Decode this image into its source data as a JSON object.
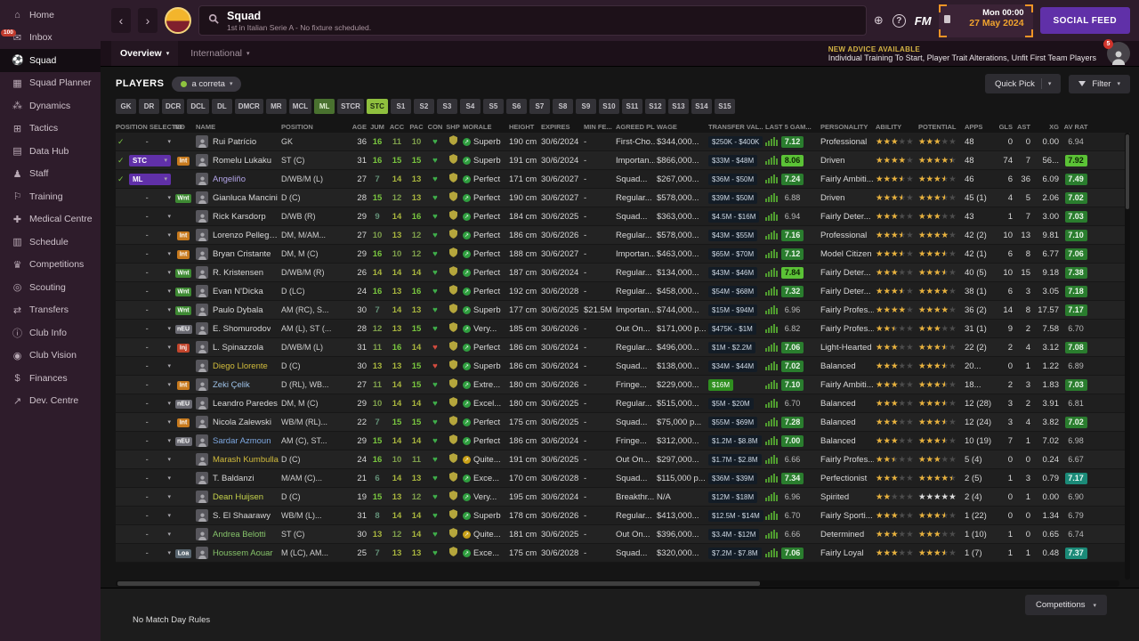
{
  "sidebar": {
    "items": [
      {
        "label": "Home",
        "icon": "⌂",
        "name": "home"
      },
      {
        "label": "Inbox",
        "icon": "✉",
        "name": "inbox",
        "badge": "100"
      },
      {
        "label": "Squad",
        "icon": "⚽",
        "name": "squad",
        "active": true
      },
      {
        "label": "Squad Planner",
        "icon": "▦",
        "name": "squad-planner"
      },
      {
        "label": "Dynamics",
        "icon": "⁂",
        "name": "dynamics"
      },
      {
        "label": "Tactics",
        "icon": "⊞",
        "name": "tactics"
      },
      {
        "label": "Data Hub",
        "icon": "▤",
        "name": "data-hub"
      },
      {
        "label": "Staff",
        "icon": "♟",
        "name": "staff"
      },
      {
        "label": "Training",
        "icon": "⚐",
        "name": "training"
      },
      {
        "label": "Medical Centre",
        "icon": "✚",
        "name": "medical-centre"
      },
      {
        "label": "Schedule",
        "icon": "▥",
        "name": "schedule"
      },
      {
        "label": "Competitions",
        "icon": "♛",
        "name": "competitions"
      },
      {
        "label": "Scouting",
        "icon": "◎",
        "name": "scouting"
      },
      {
        "label": "Transfers",
        "icon": "⇄",
        "name": "transfers"
      },
      {
        "label": "Club Info",
        "icon": "ⓘ",
        "name": "club-info"
      },
      {
        "label": "Club Vision",
        "icon": "◉",
        "name": "club-vision"
      },
      {
        "label": "Finances",
        "icon": "$",
        "name": "finances"
      },
      {
        "label": "Dev. Centre",
        "icon": "↗",
        "name": "dev-centre"
      }
    ]
  },
  "topbar": {
    "title": "Squad",
    "subtitle": "1st in Italian Serie A - No fixture scheduled.",
    "fm_logo": "FM",
    "date_line1": "Mon 00:00",
    "date_line2": "27 May 2024",
    "social_feed_label": "SOCIAL FEED"
  },
  "tabs": [
    {
      "label": "Overview"
    },
    {
      "label": "International"
    }
  ],
  "advice": {
    "heading": "NEW ADVICE AVAILABLE",
    "text": "Individual Training To Start, Player Trait Alterations, Unfit First Team Players",
    "badge": "5"
  },
  "players_bar": {
    "label": "PLAYERS",
    "view_selector": "a correta",
    "quick_pick": "Quick Pick",
    "filter": "Filter"
  },
  "position_filters": [
    {
      "label": "GK"
    },
    {
      "label": "DR"
    },
    {
      "label": "DCR"
    },
    {
      "label": "DCL"
    },
    {
      "label": "DL"
    },
    {
      "label": "DMCR"
    },
    {
      "label": "MR"
    },
    {
      "label": "MCL"
    },
    {
      "label": "ML",
      "state": "sel-mid"
    },
    {
      "label": "STCR"
    },
    {
      "label": "STC",
      "state": "sel"
    },
    {
      "label": "S1"
    },
    {
      "label": "S2"
    },
    {
      "label": "S3"
    },
    {
      "label": "S4"
    },
    {
      "label": "S5"
    },
    {
      "label": "S6"
    },
    {
      "label": "S7"
    },
    {
      "label": "S8"
    },
    {
      "label": "S9"
    },
    {
      "label": "S10"
    },
    {
      "label": "S11"
    },
    {
      "label": "S12"
    },
    {
      "label": "S13"
    },
    {
      "label": "S14"
    },
    {
      "label": "S15"
    }
  ],
  "table": {
    "columns": [
      "POSITION SELECTED",
      "INF",
      "NAME",
      "POSITION",
      "AGE",
      "JUM",
      "ACC",
      "PAC",
      "CON",
      "SHP",
      "MORALE",
      "HEIGHT",
      "EXPIRES",
      "MIN FE...",
      "AGREED PL...",
      "WAGE",
      "TRANSFER VAL...",
      "LAST 5 GAM...",
      "PERSONALITY",
      "ABILITY",
      "POTENTIAL",
      "APPS",
      "GLS",
      "AST",
      "XG",
      "AV RAT"
    ],
    "rows": [
      {
        "check": true,
        "sel": "-",
        "inf": "",
        "name": "Rui Patrício",
        "pos": "GK",
        "age": 36,
        "jum": 16,
        "acc": 11,
        "pac": 10,
        "con": "g",
        "morale": "Superb",
        "mlvl": "g",
        "height": "190 cm",
        "expires": "30/6/2024",
        "fee": "-",
        "agreed": "First-Cho...",
        "wage": "$344,000...",
        "value": "$250K - $400K",
        "last5": "7.12",
        "personality": "Professional",
        "ab": 3,
        "po": 3,
        "apps": "48",
        "gls": "0",
        "ast": "0",
        "xg": "0.00",
        "avr": "6.94"
      },
      {
        "check": true,
        "sel": "STC",
        "sel_pill": true,
        "inf": "Int",
        "name": "Romelu Lukaku",
        "pos": "ST (C)",
        "age": 31,
        "jum": 16,
        "acc": 15,
        "pac": 15,
        "con": "g",
        "morale": "Superb",
        "mlvl": "g",
        "height": "191 cm",
        "expires": "30/6/2024",
        "fee": "-",
        "agreed": "Importan...",
        "wage": "$866,000...",
        "value": "$33M - $48M",
        "last5": "8.06",
        "personality": "Driven",
        "ab": 4,
        "po": 4.5,
        "apps": "48",
        "gls": "74",
        "ast": "7",
        "xg": "56...",
        "avr": "7.92"
      },
      {
        "check": true,
        "sel": "ML",
        "sel_pill": true,
        "inf": "",
        "name": "Angeliño",
        "name_color": "#b3a5e8",
        "pos": "D/WB/M (L)",
        "age": 27,
        "jum": 7,
        "acc": 14,
        "pac": 13,
        "con": "g",
        "morale": "Perfect",
        "mlvl": "g",
        "height": "171 cm",
        "expires": "30/6/2027",
        "fee": "-",
        "agreed": "Squad...",
        "wage": "$267,000...",
        "value": "$36M - $50M",
        "last5": "7.24",
        "personality": "Fairly Ambiti...",
        "ab": 3.5,
        "po": 3.5,
        "apps": "46",
        "gls": "6",
        "ast": "36",
        "xg": "6.09",
        "avr": "7.49"
      },
      {
        "sel": "-",
        "inf": "Wnt",
        "name": "Gianluca Mancini",
        "pos": "D (C)",
        "age": 28,
        "jum": 15,
        "acc": 12,
        "pac": 13,
        "con": "g",
        "morale": "Perfect",
        "mlvl": "g",
        "height": "190 cm",
        "expires": "30/6/2027",
        "fee": "-",
        "agreed": "Regular...",
        "wage": "$578,000...",
        "value": "$39M - $50M",
        "last5": "6.88",
        "personality": "Driven",
        "ab": 3.5,
        "po": 3.5,
        "apps": "45 (1)",
        "gls": "4",
        "ast": "5",
        "xg": "2.06",
        "avr": "7.02"
      },
      {
        "sel": "-",
        "inf": "",
        "name": "Rick Karsdorp",
        "pos": "D/WB (R)",
        "age": 29,
        "jum": 9,
        "acc": 14,
        "pac": 16,
        "con": "g",
        "morale": "Perfect",
        "mlvl": "g",
        "height": "184 cm",
        "expires": "30/6/2025",
        "fee": "-",
        "agreed": "Squad...",
        "wage": "$363,000...",
        "value": "$4.5M - $16M",
        "last5": "6.94",
        "personality": "Fairly Deter...",
        "ab": 3,
        "po": 3,
        "apps": "43",
        "gls": "1",
        "ast": "7",
        "xg": "3.00",
        "avr": "7.03"
      },
      {
        "sel": "-",
        "inf": "Int",
        "name": "Lorenzo Pellegrini",
        "pos": "DM, M/AM...",
        "age": 27,
        "jum": 10,
        "acc": 13,
        "pac": 12,
        "con": "g",
        "morale": "Perfect",
        "mlvl": "g",
        "height": "186 cm",
        "expires": "30/6/2026",
        "fee": "-",
        "agreed": "Regular...",
        "wage": "$578,000...",
        "value": "$43M - $55M",
        "last5": "7.16",
        "personality": "Professional",
        "ab": 3.5,
        "po": 4,
        "apps": "42 (2)",
        "gls": "10",
        "ast": "13",
        "xg": "9.81",
        "avr": "7.10"
      },
      {
        "sel": "-",
        "inf": "Int",
        "name": "Bryan Cristante",
        "pos": "DM, M (C)",
        "age": 29,
        "jum": 16,
        "acc": 10,
        "pac": 12,
        "con": "g",
        "morale": "Perfect",
        "mlvl": "g",
        "height": "188 cm",
        "expires": "30/6/2027",
        "fee": "-",
        "agreed": "Importan...",
        "wage": "$463,000...",
        "value": "$65M - $70M",
        "last5": "7.12",
        "personality": "Model Citizen",
        "ab": 3.5,
        "po": 3.5,
        "apps": "42 (1)",
        "gls": "6",
        "ast": "8",
        "xg": "6.77",
        "avr": "7.06"
      },
      {
        "sel": "-",
        "inf": "Wnt",
        "name": "R. Kristensen",
        "pos": "D/WB/M (R)",
        "age": 26,
        "jum": 14,
        "acc": 14,
        "pac": 14,
        "con": "g",
        "morale": "Perfect",
        "mlvl": "g",
        "height": "187 cm",
        "expires": "30/6/2024",
        "fee": "-",
        "agreed": "Regular...",
        "wage": "$134,000...",
        "value": "$43M - $46M",
        "last5": "7.84",
        "personality": "Fairly Deter...",
        "ab": 3,
        "po": 3.5,
        "apps": "40 (5)",
        "gls": "10",
        "ast": "15",
        "xg": "9.18",
        "avr": "7.38"
      },
      {
        "sel": "-",
        "inf": "Wnt",
        "name": "Evan N'Dicka",
        "pos": "D (LC)",
        "age": 24,
        "jum": 16,
        "acc": 13,
        "pac": 16,
        "con": "g",
        "morale": "Perfect",
        "mlvl": "g",
        "height": "192 cm",
        "expires": "30/6/2028",
        "fee": "-",
        "agreed": "Regular...",
        "wage": "$458,000...",
        "value": "$54M - $68M",
        "last5": "7.32",
        "personality": "Fairly Deter...",
        "ab": 3.5,
        "po": 4,
        "apps": "38 (1)",
        "gls": "6",
        "ast": "3",
        "xg": "3.05",
        "avr": "7.18"
      },
      {
        "sel": "-",
        "inf": "Wnt",
        "name": "Paulo Dybala",
        "pos": "AM (RC), S...",
        "age": 30,
        "jum": 7,
        "acc": 14,
        "pac": 13,
        "con": "g",
        "morale": "Superb",
        "mlvl": "g",
        "height": "177 cm",
        "expires": "30/6/2025",
        "fee": "$21.5M",
        "agreed": "Importan...",
        "wage": "$744,000...",
        "value": "$15M - $94M",
        "last5": "6.96",
        "personality": "Fairly Profes...",
        "ab": 4,
        "po": 4,
        "apps": "36 (2)",
        "gls": "14",
        "ast": "8",
        "xg": "17.57",
        "avr": "7.17"
      },
      {
        "sel": "-",
        "inf": "nEU",
        "name": "E. Shomurodov",
        "pos": "AM (L), ST (...",
        "age": 28,
        "jum": 12,
        "acc": 13,
        "pac": 15,
        "con": "g",
        "morale": "Very...",
        "mlvl": "g",
        "height": "185 cm",
        "expires": "30/6/2026",
        "fee": "-",
        "agreed": "Out On...",
        "wage": "$171,000 p...",
        "value": "$475K - $1M",
        "last5": "6.82",
        "personality": "Fairly Profes...",
        "ab": 2.5,
        "po": 3,
        "apps": "31 (1)",
        "gls": "9",
        "ast": "2",
        "xg": "7.58",
        "avr": "6.70"
      },
      {
        "sel": "-",
        "inf": "Inj",
        "name": "L. Spinazzola",
        "pos": "D/WB/M (L)",
        "age": 31,
        "jum": 11,
        "acc": 16,
        "pac": 14,
        "con": "r",
        "morale": "Perfect",
        "mlvl": "g",
        "height": "186 cm",
        "expires": "30/6/2024",
        "fee": "-",
        "agreed": "Regular...",
        "wage": "$496,000...",
        "value": "$1M - $2.2M",
        "last5": "7.06",
        "personality": "Light-Hearted",
        "ab": 3,
        "po": 3.5,
        "apps": "22 (2)",
        "gls": "2",
        "ast": "4",
        "xg": "3.12",
        "avr": "7.08"
      },
      {
        "sel": "-",
        "inf": "",
        "name": "Diego Llorente",
        "name_color": "#d2bc3c",
        "pos": "D (C)",
        "age": 30,
        "jum": 13,
        "acc": 13,
        "pac": 15,
        "con": "r",
        "morale": "Superb",
        "mlvl": "g",
        "height": "186 cm",
        "expires": "30/6/2024",
        "fee": "-",
        "agreed": "Squad...",
        "wage": "$138,000...",
        "value": "$34M - $44M",
        "last5": "7.02",
        "personality": "Balanced",
        "ab": 3,
        "po": 3.5,
        "apps": "20...",
        "gls": "0",
        "ast": "1",
        "xg": "1.22",
        "avr": "6.89"
      },
      {
        "sel": "-",
        "inf": "Int",
        "name": "Zeki Çelik",
        "name_color": "#9ec2e8",
        "pos": "D (RL), WB...",
        "age": 27,
        "jum": 11,
        "acc": 14,
        "pac": 15,
        "con": "g",
        "morale": "Extre...",
        "mlvl": "g",
        "height": "180 cm",
        "expires": "30/6/2026",
        "fee": "-",
        "agreed": "Fringe...",
        "wage": "$229,000...",
        "value": "$16M",
        "value_green": true,
        "last5": "7.10",
        "personality": "Fairly Ambiti...",
        "ab": 3,
        "po": 3.5,
        "apps": "18...",
        "gls": "2",
        "ast": "3",
        "xg": "1.83",
        "avr": "7.03"
      },
      {
        "sel": "-",
        "inf": "nEU",
        "name": "Leandro Paredes",
        "pos": "DM, M (C)",
        "age": 29,
        "jum": 10,
        "acc": 14,
        "pac": 14,
        "con": "g",
        "morale": "Excel...",
        "mlvl": "g",
        "height": "180 cm",
        "expires": "30/6/2025",
        "fee": "-",
        "agreed": "Regular...",
        "wage": "$515,000...",
        "value": "$5M - $20M",
        "last5": "6.70",
        "personality": "Balanced",
        "ab": 3,
        "po": 3.5,
        "apps": "12 (28)",
        "gls": "3",
        "ast": "2",
        "xg": "3.91",
        "avr": "6.81"
      },
      {
        "sel": "-",
        "inf": "Int",
        "name": "Nicola Zalewski",
        "pos": "WB/M (RL)...",
        "age": 22,
        "jum": 7,
        "acc": 15,
        "pac": 15,
        "con": "g",
        "morale": "Perfect",
        "mlvl": "g",
        "height": "175 cm",
        "expires": "30/6/2025",
        "fee": "-",
        "agreed": "Squad...",
        "wage": "$75,000 p...",
        "value": "$55M - $69M",
        "last5": "7.28",
        "personality": "Balanced",
        "ab": 3,
        "po": 3.5,
        "apps": "12 (24)",
        "gls": "3",
        "ast": "4",
        "xg": "3.82",
        "avr": "7.02"
      },
      {
        "sel": "-",
        "inf": "nEU",
        "name": "Sardar Azmoun",
        "name_color": "#7da7e0",
        "pos": "AM (C), ST...",
        "age": 29,
        "jum": 15,
        "acc": 14,
        "pac": 14,
        "con": "g",
        "morale": "Perfect",
        "mlvl": "g",
        "height": "186 cm",
        "expires": "30/6/2024",
        "fee": "-",
        "agreed": "Fringe...",
        "wage": "$312,000...",
        "value": "$1.2M - $8.8M",
        "last5": "7.00",
        "personality": "Balanced",
        "ab": 3,
        "po": 3.5,
        "apps": "10 (19)",
        "gls": "7",
        "ast": "1",
        "xg": "7.02",
        "avr": "6.98"
      },
      {
        "sel": "-",
        "inf": "",
        "name": "Marash Kumbulla",
        "name_color": "#d2bc3c",
        "pos": "D (C)",
        "age": 24,
        "jum": 16,
        "acc": 10,
        "pac": 11,
        "con": "g",
        "morale": "Quite...",
        "mlvl": "y",
        "height": "191 cm",
        "expires": "30/6/2025",
        "fee": "-",
        "agreed": "Out On...",
        "wage": "$297,000...",
        "value": "$1.7M - $2.8M",
        "last5": "6.66",
        "personality": "Fairly Profes...",
        "ab": 2.5,
        "po": 3,
        "apps": "5 (4)",
        "gls": "0",
        "ast": "0",
        "xg": "0.24",
        "avr": "6.67"
      },
      {
        "sel": "-",
        "inf": "",
        "name": "T. Baldanzi",
        "pos": "M/AM (C)...",
        "age": 21,
        "jum": 6,
        "acc": 14,
        "pac": 13,
        "con": "g",
        "morale": "Exce...",
        "mlvl": "g",
        "height": "170 cm",
        "expires": "30/6/2028",
        "fee": "-",
        "agreed": "Squad...",
        "wage": "$115,000 p...",
        "value": "$36M - $39M",
        "last5": "7.34",
        "personality": "Perfectionist",
        "ab": 3,
        "po": 4.5,
        "apps": "2 (5)",
        "gls": "1",
        "ast": "3",
        "xg": "0.79",
        "avr": "7.17",
        "avr_teal": true
      },
      {
        "sel": "-",
        "inf": "",
        "name": "Dean Huijsen",
        "name_color": "#c5d24a",
        "pos": "D (C)",
        "age": 19,
        "jum": 15,
        "acc": 13,
        "pac": 12,
        "con": "g",
        "morale": "Very...",
        "mlvl": "g",
        "height": "195 cm",
        "expires": "30/6/2024",
        "fee": "-",
        "agreed": "Breakthr...",
        "wage": "N/A",
        "value": "$12M - $18M",
        "last5": "6.96",
        "personality": "Spirited",
        "ab": 2,
        "po": 5,
        "po_silver": true,
        "apps": "2 (4)",
        "gls": "0",
        "ast": "1",
        "xg": "0.00",
        "avr": "6.90"
      },
      {
        "sel": "-",
        "inf": "",
        "name": "S. El Shaarawy",
        "pos": "WB/M (L)...",
        "age": 31,
        "jum": 8,
        "acc": 14,
        "pac": 14,
        "con": "g",
        "morale": "Superb",
        "mlvl": "g",
        "height": "178 cm",
        "expires": "30/6/2026",
        "fee": "-",
        "agreed": "Regular...",
        "wage": "$413,000...",
        "value": "$12.5M - $14M",
        "last5": "6.70",
        "personality": "Fairly Sporti...",
        "ab": 3,
        "po": 3.5,
        "apps": "1 (22)",
        "gls": "0",
        "ast": "0",
        "xg": "1.34",
        "avr": "6.79"
      },
      {
        "sel": "-",
        "inf": "",
        "name": "Andrea Belotti",
        "name_color": "#86c36a",
        "pos": "ST (C)",
        "age": 30,
        "jum": 13,
        "acc": 12,
        "pac": 14,
        "con": "g",
        "morale": "Quite...",
        "mlvl": "y",
        "height": "181 cm",
        "expires": "30/6/2025",
        "fee": "-",
        "agreed": "Out On...",
        "wage": "$396,000...",
        "value": "$3.4M - $12M",
        "last5": "6.66",
        "personality": "Determined",
        "ab": 3,
        "po": 3,
        "apps": "1 (10)",
        "gls": "1",
        "ast": "0",
        "xg": "0.65",
        "avr": "6.74"
      },
      {
        "sel": "-",
        "inf": "Loa",
        "name": "Houssem Aouar",
        "name_color": "#86c36a",
        "pos": "M (LC), AM...",
        "age": 25,
        "jum": 7,
        "acc": 13,
        "pac": 13,
        "con": "g",
        "morale": "Exce...",
        "mlvl": "g",
        "height": "175 cm",
        "expires": "30/6/2028",
        "fee": "-",
        "agreed": "Squad...",
        "wage": "$320,000...",
        "value": "$7.2M - $7.8M",
        "last5": "7.06",
        "personality": "Fairly Loyal",
        "ab": 3,
        "po": 3.5,
        "apps": "1 (7)",
        "gls": "1",
        "ast": "1",
        "xg": "0.48",
        "avr": "7.37",
        "avr_teal": true
      }
    ]
  },
  "bottom": {
    "status": "No Match Day Rules",
    "competitions_label": "Competitions"
  },
  "colors": {
    "accent_orange": "#ef9426",
    "social_purple": "#6030a8",
    "filter_green": "#8fbf3e",
    "rating_green": "#2a7d2e",
    "rating_bright": "#5bc236"
  }
}
